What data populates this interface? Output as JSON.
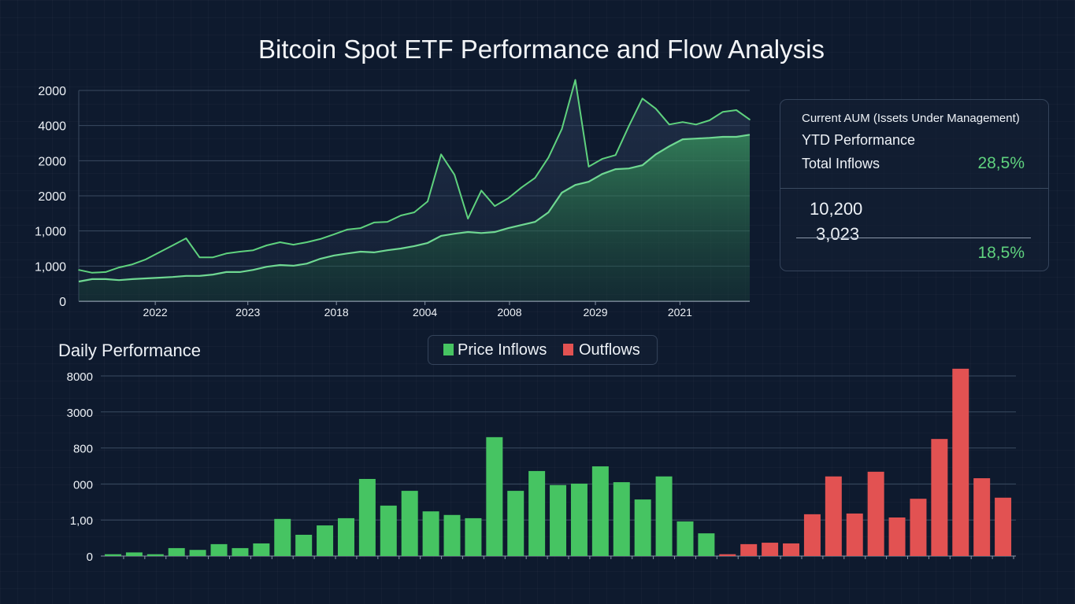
{
  "title": "Bitcoin Spot ETF Performance and Flow Analysis",
  "colors": {
    "background": "#0e1a2e",
    "price_line": "#5fd27e",
    "aum_line": "#6fd892",
    "inflow": "#46c462",
    "outflow": "#e25252",
    "grid": "#3a4a60"
  },
  "info_panel": {
    "line1": "Current AUM (Issets Under Management)",
    "line2": "YTD Performance",
    "line3": "Total Inflows",
    "value1": "28,5%",
    "value2": "10,200",
    "value3": "3,023",
    "value4": "18,5%"
  },
  "chart_data": [
    {
      "type": "line",
      "title": "",
      "ylim": [
        0,
        6
      ],
      "grid": true,
      "y_ticks": [
        {
          "value": 0,
          "label": "0"
        },
        {
          "value": 1,
          "label": "1,000"
        },
        {
          "value": 2,
          "label": "1,000"
        },
        {
          "value": 3,
          "label": "2000"
        },
        {
          "value": 4,
          "label": "2000"
        },
        {
          "value": 5,
          "label": "4000"
        },
        {
          "value": 6,
          "label": "2000"
        }
      ],
      "x_ticks": [
        {
          "index": 5.7,
          "label": "2022"
        },
        {
          "index": 12.6,
          "label": "2023"
        },
        {
          "index": 19.2,
          "label": "2018"
        },
        {
          "index": 25.8,
          "label": "2004"
        },
        {
          "index": 32.1,
          "label": "2008"
        },
        {
          "index": 38.5,
          "label": "2029"
        },
        {
          "index": 44.8,
          "label": "2021"
        }
      ],
      "series": [
        {
          "values": [
            0.89,
            0.81,
            0.83,
            0.96,
            1.05,
            1.19,
            1.39,
            1.59,
            1.79,
            1.25,
            1.25,
            1.36,
            1.41,
            1.45,
            1.59,
            1.68,
            1.61,
            1.68,
            1.77,
            1.9,
            2.04,
            2.08,
            2.24,
            2.26,
            2.44,
            2.53,
            2.84,
            4.18,
            3.6,
            2.35,
            3.15,
            2.71,
            2.93,
            3.24,
            3.51,
            4.09,
            4.9,
            6.3,
            3.83,
            4.05,
            4.16,
            4.99,
            5.77,
            5.48,
            5.03,
            5.1,
            5.03,
            5.15,
            5.39,
            5.44,
            5.17
          ]
        },
        {
          "values": [
            0.56,
            0.63,
            0.63,
            0.6,
            0.63,
            0.65,
            0.67,
            0.69,
            0.72,
            0.72,
            0.76,
            0.83,
            0.83,
            0.89,
            0.98,
            1.03,
            1.01,
            1.07,
            1.21,
            1.3,
            1.36,
            1.41,
            1.39,
            1.45,
            1.5,
            1.57,
            1.66,
            1.86,
            1.92,
            1.97,
            1.94,
            1.97,
            2.08,
            2.17,
            2.26,
            2.53,
            3.09,
            3.31,
            3.4,
            3.62,
            3.76,
            3.78,
            3.87,
            4.18,
            4.41,
            4.61,
            4.63,
            4.65,
            4.68,
            4.68,
            4.74
          ],
          "area": true
        }
      ]
    },
    {
      "type": "bar",
      "title": "Daily Performance",
      "ylim": [
        0,
        5.3
      ],
      "grid": true,
      "legend": {
        "position": "top-center",
        "items": [
          {
            "label": "Price Inflows",
            "color": "#46c462"
          },
          {
            "label": "Outflows",
            "color": "#e25252"
          }
        ]
      },
      "y_ticks": [
        {
          "value": 0,
          "label": "0"
        },
        {
          "value": 1,
          "label": "1,00"
        },
        {
          "value": 2,
          "label": "000"
        },
        {
          "value": 3,
          "label": "800"
        },
        {
          "value": 4,
          "label": "3000"
        },
        {
          "value": 5,
          "label": "8000"
        }
      ],
      "series": [
        {
          "name": "Price Inflows",
          "values": [
            0.05,
            0.1,
            0.05,
            0.22,
            0.17,
            0.33,
            0.22,
            0.35,
            1.03,
            0.59,
            0.85,
            1.05,
            2.14,
            1.4,
            1.81,
            1.24,
            1.14,
            1.05,
            3.3,
            1.81,
            2.36,
            1.97,
            2.01,
            2.49,
            2.05,
            1.57,
            2.21,
            0.96,
            0.63
          ]
        },
        {
          "name": "Outflows",
          "values": [
            0.05,
            0.33,
            0.37,
            0.35,
            1.16,
            2.21,
            1.18,
            2.34,
            1.07,
            1.59,
            3.25,
            5.2,
            2.16,
            1.62
          ]
        }
      ]
    }
  ]
}
